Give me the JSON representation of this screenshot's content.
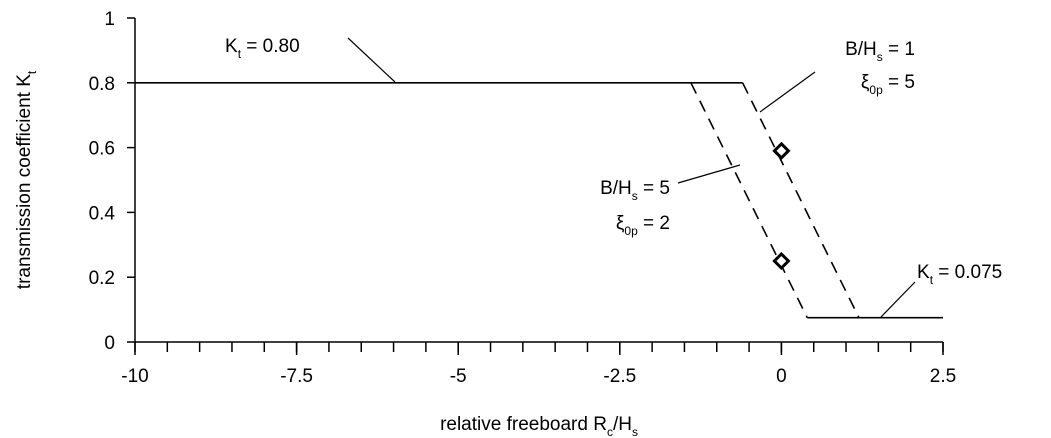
{
  "chart_data": {
    "type": "line",
    "xlabel": [
      "relative freeboard R",
      "c",
      "/H",
      "s"
    ],
    "ylabel": [
      "transmission coefficient K",
      "t"
    ],
    "xlim": [
      -10,
      2.5
    ],
    "xticks": [
      -10,
      -7.5,
      -5,
      -2.5,
      0,
      2.5
    ],
    "xminor_step": 0.5,
    "ylim": [
      0,
      1
    ],
    "yticks": [
      0,
      0.2,
      0.4,
      0.6,
      0.8,
      1
    ],
    "series": [
      {
        "style": "solid",
        "color": "#000000",
        "x": [
          -10,
          -0.6
        ],
        "values": [
          0.8,
          0.8
        ]
      },
      {
        "style": "dashed",
        "color": "#000000",
        "x": [
          -0.6,
          1.2
        ],
        "values": [
          0.8,
          0.075
        ]
      },
      {
        "style": "dashed",
        "color": "#000000",
        "x": [
          -1.4,
          0.4
        ],
        "values": [
          0.8,
          0.075
        ]
      },
      {
        "style": "solid",
        "color": "#000000",
        "x": [
          0.4,
          2.5
        ],
        "values": [
          0.075,
          0.075
        ]
      },
      {
        "style": "marker",
        "color": "#000000",
        "x": [
          0,
          0
        ],
        "values": [
          0.59,
          0.25
        ]
      }
    ],
    "annotations": [
      [
        [
          "K",
          "t",
          " = 0.80"
        ]
      ],
      [
        [
          "B/H",
          "s",
          " = 1"
        ],
        [
          "ξ",
          "0p",
          " = 5"
        ]
      ],
      [
        [
          "B/H",
          "s",
          " = 5"
        ],
        [
          "ξ",
          "0p",
          " = 2"
        ]
      ],
      [
        [
          "K",
          "t",
          " = 0.075"
        ]
      ]
    ]
  }
}
